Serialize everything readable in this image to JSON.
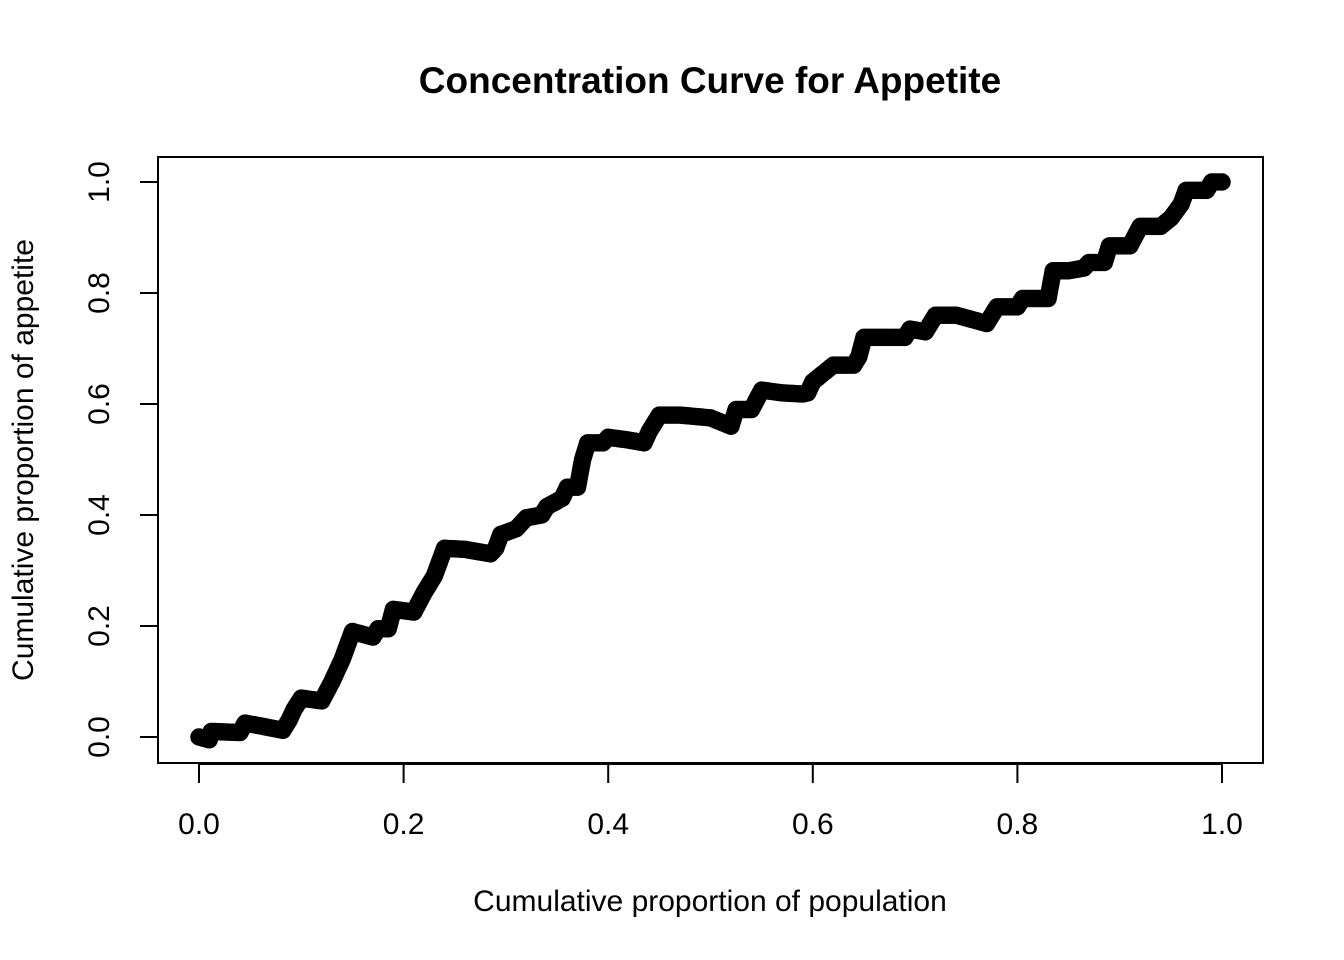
{
  "chart_data": {
    "type": "scatter",
    "title": "Concentration Curve for Appetite",
    "xlabel": "Cumulative proportion of population",
    "ylabel": "Cumulative proportion of appetite",
    "xlim": [
      0.0,
      1.0
    ],
    "ylim": [
      0.0,
      1.0
    ],
    "xticks": [
      "0.0",
      "0.2",
      "0.4",
      "0.6",
      "0.8",
      "1.0"
    ],
    "yticks": [
      "0.0",
      "0.2",
      "0.4",
      "0.6",
      "0.8",
      "1.0"
    ],
    "grid": false,
    "marker": "open-circle",
    "color": "#000000",
    "curve_points": [
      [
        0.0,
        0.0
      ],
      [
        0.01,
        -0.005
      ],
      [
        0.012,
        0.01
      ],
      [
        0.04,
        0.008
      ],
      [
        0.045,
        0.025
      ],
      [
        0.06,
        0.02
      ],
      [
        0.082,
        0.012
      ],
      [
        0.088,
        0.03
      ],
      [
        0.093,
        0.05
      ],
      [
        0.1,
        0.07
      ],
      [
        0.12,
        0.065
      ],
      [
        0.13,
        0.1
      ],
      [
        0.14,
        0.14
      ],
      [
        0.15,
        0.19
      ],
      [
        0.17,
        0.18
      ],
      [
        0.175,
        0.195
      ],
      [
        0.185,
        0.195
      ],
      [
        0.19,
        0.23
      ],
      [
        0.21,
        0.225
      ],
      [
        0.22,
        0.26
      ],
      [
        0.23,
        0.29
      ],
      [
        0.24,
        0.34
      ],
      [
        0.26,
        0.338
      ],
      [
        0.285,
        0.33
      ],
      [
        0.29,
        0.34
      ],
      [
        0.295,
        0.365
      ],
      [
        0.31,
        0.375
      ],
      [
        0.32,
        0.395
      ],
      [
        0.335,
        0.4
      ],
      [
        0.34,
        0.415
      ],
      [
        0.355,
        0.43
      ],
      [
        0.36,
        0.45
      ],
      [
        0.37,
        0.45
      ],
      [
        0.375,
        0.5
      ],
      [
        0.38,
        0.53
      ],
      [
        0.395,
        0.53
      ],
      [
        0.4,
        0.54
      ],
      [
        0.42,
        0.535
      ],
      [
        0.435,
        0.53
      ],
      [
        0.44,
        0.55
      ],
      [
        0.45,
        0.58
      ],
      [
        0.47,
        0.58
      ],
      [
        0.5,
        0.575
      ],
      [
        0.52,
        0.56
      ],
      [
        0.525,
        0.59
      ],
      [
        0.54,
        0.59
      ],
      [
        0.55,
        0.625
      ],
      [
        0.57,
        0.62
      ],
      [
        0.59,
        0.618
      ],
      [
        0.595,
        0.62
      ],
      [
        0.6,
        0.64
      ],
      [
        0.61,
        0.655
      ],
      [
        0.62,
        0.67
      ],
      [
        0.64,
        0.67
      ],
      [
        0.645,
        0.685
      ],
      [
        0.65,
        0.72
      ],
      [
        0.67,
        0.72
      ],
      [
        0.69,
        0.72
      ],
      [
        0.695,
        0.735
      ],
      [
        0.71,
        0.73
      ],
      [
        0.72,
        0.76
      ],
      [
        0.74,
        0.76
      ],
      [
        0.76,
        0.75
      ],
      [
        0.77,
        0.745
      ],
      [
        0.78,
        0.775
      ],
      [
        0.8,
        0.775
      ],
      [
        0.805,
        0.79
      ],
      [
        0.83,
        0.79
      ],
      [
        0.835,
        0.84
      ],
      [
        0.85,
        0.84
      ],
      [
        0.865,
        0.845
      ],
      [
        0.87,
        0.855
      ],
      [
        0.885,
        0.855
      ],
      [
        0.89,
        0.885
      ],
      [
        0.91,
        0.885
      ],
      [
        0.92,
        0.92
      ],
      [
        0.94,
        0.92
      ],
      [
        0.95,
        0.935
      ],
      [
        0.96,
        0.96
      ],
      [
        0.965,
        0.985
      ],
      [
        0.985,
        0.985
      ],
      [
        0.99,
        1.0
      ],
      [
        1.0,
        1.0
      ]
    ]
  }
}
